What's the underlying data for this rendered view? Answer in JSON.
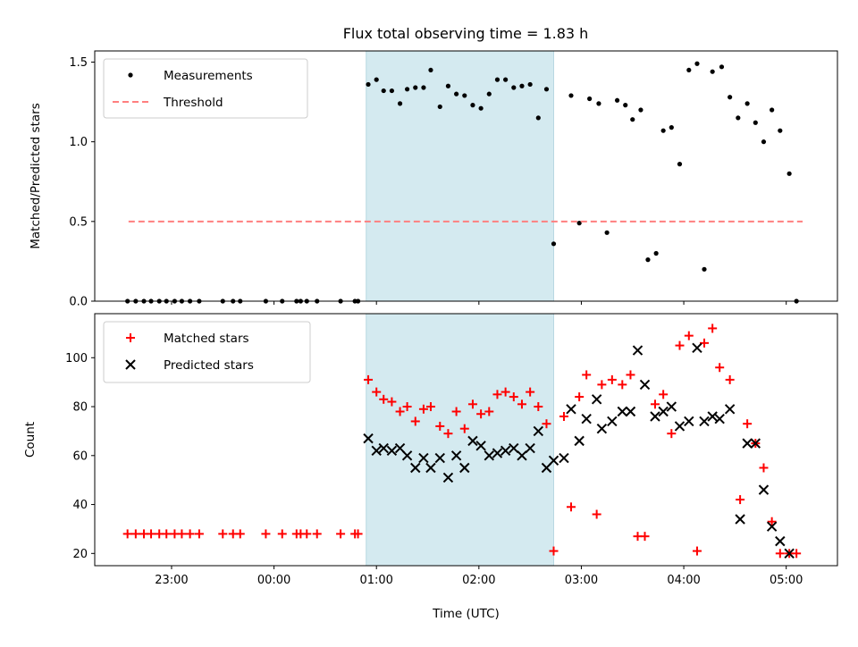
{
  "chart_data": [
    {
      "type": "scatter",
      "title": "Flux total observing time = 1.83 h",
      "ylabel": "Matched/Predicted stars",
      "xlabel": "",
      "x_unit": "hours from 00:00 UTC",
      "xlim": [
        -1.75,
        5.5
      ],
      "ylim": [
        0,
        1.57
      ],
      "yticks": [
        0.0,
        0.5,
        1.0,
        1.5
      ],
      "ytick_labels": [
        "0.0",
        "0.5",
        "1.0",
        "1.5"
      ],
      "grid": false,
      "legend_position": "top-left",
      "shaded_interval": [
        0.9,
        2.73
      ],
      "shade_color": "#d4eaf0",
      "series": [
        {
          "name": "Measurements",
          "marker": "dot",
          "color": "#000000",
          "points": [
            [
              -1.43,
              0
            ],
            [
              -1.35,
              0
            ],
            [
              -1.27,
              0
            ],
            [
              -1.2,
              0
            ],
            [
              -1.12,
              0
            ],
            [
              -1.05,
              0
            ],
            [
              -0.97,
              0
            ],
            [
              -0.9,
              0
            ],
            [
              -0.82,
              0
            ],
            [
              -0.73,
              0
            ],
            [
              -0.5,
              0
            ],
            [
              -0.4,
              0
            ],
            [
              -0.33,
              0
            ],
            [
              -0.08,
              0
            ],
            [
              0.08,
              0
            ],
            [
              0.22,
              0
            ],
            [
              0.26,
              0
            ],
            [
              0.32,
              0
            ],
            [
              0.42,
              0
            ],
            [
              0.65,
              0
            ],
            [
              0.79,
              0
            ],
            [
              0.82,
              0
            ],
            [
              0.92,
              1.36
            ],
            [
              1.0,
              1.39
            ],
            [
              1.07,
              1.32
            ],
            [
              1.15,
              1.32
            ],
            [
              1.23,
              1.24
            ],
            [
              1.3,
              1.33
            ],
            [
              1.38,
              1.34
            ],
            [
              1.46,
              1.34
            ],
            [
              1.53,
              1.45
            ],
            [
              1.62,
              1.22
            ],
            [
              1.7,
              1.35
            ],
            [
              1.78,
              1.3
            ],
            [
              1.86,
              1.29
            ],
            [
              1.94,
              1.23
            ],
            [
              2.02,
              1.21
            ],
            [
              2.1,
              1.3
            ],
            [
              2.18,
              1.39
            ],
            [
              2.26,
              1.39
            ],
            [
              2.34,
              1.34
            ],
            [
              2.42,
              1.35
            ],
            [
              2.5,
              1.36
            ],
            [
              2.58,
              1.15
            ],
            [
              2.66,
              1.33
            ],
            [
              2.73,
              0.36
            ],
            [
              2.9,
              1.29
            ],
            [
              2.98,
              0.49
            ],
            [
              3.08,
              1.27
            ],
            [
              3.17,
              1.24
            ],
            [
              3.25,
              0.43
            ],
            [
              3.35,
              1.26
            ],
            [
              3.43,
              1.23
            ],
            [
              3.5,
              1.14
            ],
            [
              3.58,
              1.2
            ],
            [
              3.65,
              0.26
            ],
            [
              3.73,
              0.3
            ],
            [
              3.8,
              1.07
            ],
            [
              3.88,
              1.09
            ],
            [
              3.96,
              0.86
            ],
            [
              4.05,
              1.45
            ],
            [
              4.13,
              1.49
            ],
            [
              4.2,
              0.2
            ],
            [
              4.28,
              1.44
            ],
            [
              4.37,
              1.47
            ],
            [
              4.45,
              1.28
            ],
            [
              4.53,
              1.15
            ],
            [
              4.62,
              1.24
            ],
            [
              4.7,
              1.12
            ],
            [
              4.78,
              1.0
            ],
            [
              4.86,
              1.2
            ],
            [
              4.94,
              1.07
            ],
            [
              5.03,
              0.8
            ],
            [
              5.1,
              0
            ]
          ]
        },
        {
          "name": "Threshold",
          "marker": "dashed-line",
          "color": "#ff7f7f",
          "x": [
            -1.42,
            5.16
          ],
          "y": [
            0.5,
            0.5
          ]
        }
      ]
    },
    {
      "type": "scatter",
      "title": "",
      "ylabel": "Count",
      "xlabel": "Time (UTC)",
      "x_unit": "hours from 00:00 UTC",
      "xlim": [
        -1.75,
        5.5
      ],
      "ylim": [
        15,
        118
      ],
      "yticks": [
        20,
        40,
        60,
        80,
        100
      ],
      "ytick_labels": [
        "20",
        "40",
        "60",
        "80",
        "100"
      ],
      "xticks": [
        -1,
        0,
        1,
        2,
        3,
        4,
        5
      ],
      "xtick_labels": [
        "23:00",
        "00:00",
        "01:00",
        "02:00",
        "03:00",
        "04:00",
        "05:00"
      ],
      "grid": false,
      "legend_position": "top-left",
      "shaded_interval": [
        0.9,
        2.73
      ],
      "shade_color": "#d4eaf0",
      "series": [
        {
          "name": "Matched stars",
          "marker": "plus",
          "color": "#ff0000",
          "points": [
            [
              -1.43,
              28
            ],
            [
              -1.35,
              28
            ],
            [
              -1.27,
              28
            ],
            [
              -1.2,
              28
            ],
            [
              -1.12,
              28
            ],
            [
              -1.05,
              28
            ],
            [
              -0.97,
              28
            ],
            [
              -0.9,
              28
            ],
            [
              -0.82,
              28
            ],
            [
              -0.73,
              28
            ],
            [
              -0.5,
              28
            ],
            [
              -0.4,
              28
            ],
            [
              -0.33,
              28
            ],
            [
              -0.08,
              28
            ],
            [
              0.08,
              28
            ],
            [
              0.22,
              28
            ],
            [
              0.26,
              28
            ],
            [
              0.32,
              28
            ],
            [
              0.42,
              28
            ],
            [
              0.65,
              28
            ],
            [
              0.79,
              28
            ],
            [
              0.82,
              28
            ],
            [
              0.92,
              91
            ],
            [
              1.0,
              86
            ],
            [
              1.07,
              83
            ],
            [
              1.15,
              82
            ],
            [
              1.23,
              78
            ],
            [
              1.3,
              80
            ],
            [
              1.38,
              74
            ],
            [
              1.46,
              79
            ],
            [
              1.53,
              80
            ],
            [
              1.62,
              72
            ],
            [
              1.7,
              69
            ],
            [
              1.78,
              78
            ],
            [
              1.86,
              71
            ],
            [
              1.94,
              81
            ],
            [
              2.02,
              77
            ],
            [
              2.1,
              78
            ],
            [
              2.18,
              85
            ],
            [
              2.26,
              86
            ],
            [
              2.34,
              84
            ],
            [
              2.42,
              81
            ],
            [
              2.5,
              86
            ],
            [
              2.58,
              80
            ],
            [
              2.66,
              73
            ],
            [
              2.73,
              21
            ],
            [
              2.83,
              76
            ],
            [
              2.9,
              39
            ],
            [
              2.98,
              84
            ],
            [
              3.05,
              93
            ],
            [
              3.15,
              36
            ],
            [
              3.2,
              89
            ],
            [
              3.3,
              91
            ],
            [
              3.4,
              89
            ],
            [
              3.48,
              93
            ],
            [
              3.55,
              27
            ],
            [
              3.62,
              27
            ],
            [
              3.72,
              81
            ],
            [
              3.8,
              85
            ],
            [
              3.88,
              69
            ],
            [
              3.96,
              105
            ],
            [
              4.05,
              109
            ],
            [
              4.13,
              21
            ],
            [
              4.2,
              106
            ],
            [
              4.28,
              112
            ],
            [
              4.35,
              96
            ],
            [
              4.45,
              91
            ],
            [
              4.55,
              42
            ],
            [
              4.62,
              73
            ],
            [
              4.7,
              65
            ],
            [
              4.78,
              55
            ],
            [
              4.86,
              33
            ],
            [
              4.94,
              20
            ],
            [
              5.03,
              20
            ],
            [
              5.1,
              20
            ]
          ]
        },
        {
          "name": "Predicted stars",
          "marker": "x",
          "color": "#000000",
          "points": [
            [
              0.92,
              67
            ],
            [
              1.0,
              62
            ],
            [
              1.07,
              63
            ],
            [
              1.15,
              62
            ],
            [
              1.23,
              63
            ],
            [
              1.3,
              60
            ],
            [
              1.38,
              55
            ],
            [
              1.46,
              59
            ],
            [
              1.53,
              55
            ],
            [
              1.62,
              59
            ],
            [
              1.7,
              51
            ],
            [
              1.78,
              60
            ],
            [
              1.86,
              55
            ],
            [
              1.94,
              66
            ],
            [
              2.02,
              64
            ],
            [
              2.1,
              60
            ],
            [
              2.18,
              61
            ],
            [
              2.26,
              62
            ],
            [
              2.34,
              63
            ],
            [
              2.42,
              60
            ],
            [
              2.5,
              63
            ],
            [
              2.58,
              70
            ],
            [
              2.66,
              55
            ],
            [
              2.73,
              58
            ],
            [
              2.83,
              59
            ],
            [
              2.9,
              79
            ],
            [
              2.98,
              66
            ],
            [
              3.05,
              75
            ],
            [
              3.15,
              83
            ],
            [
              3.2,
              71
            ],
            [
              3.3,
              74
            ],
            [
              3.4,
              78
            ],
            [
              3.48,
              78
            ],
            [
              3.55,
              103
            ],
            [
              3.62,
              89
            ],
            [
              3.72,
              76
            ],
            [
              3.8,
              78
            ],
            [
              3.88,
              80
            ],
            [
              3.96,
              72
            ],
            [
              4.05,
              74
            ],
            [
              4.13,
              104
            ],
            [
              4.2,
              74
            ],
            [
              4.28,
              76
            ],
            [
              4.35,
              75
            ],
            [
              4.45,
              79
            ],
            [
              4.55,
              34
            ],
            [
              4.62,
              65
            ],
            [
              4.7,
              65
            ],
            [
              4.78,
              46
            ],
            [
              4.86,
              31
            ],
            [
              4.94,
              25
            ],
            [
              5.03,
              20
            ]
          ]
        }
      ]
    }
  ]
}
